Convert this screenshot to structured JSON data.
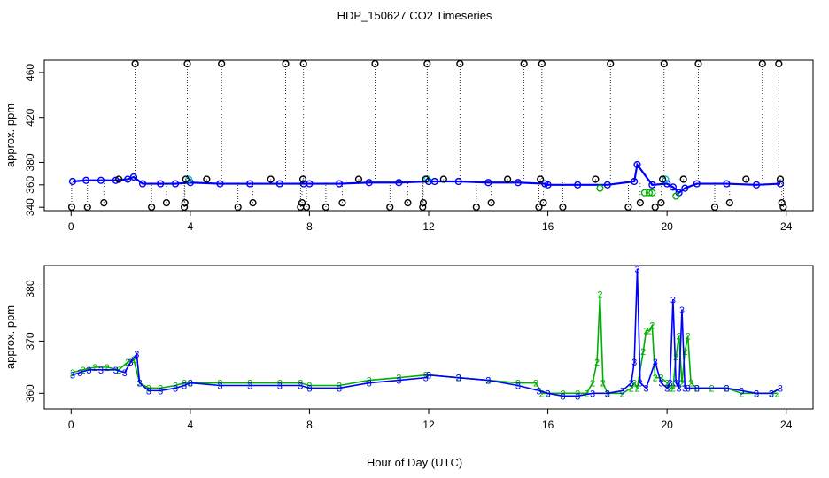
{
  "title": "HDP_150627  CO2 Timeseries",
  "xlabel": "Hour of Day (UTC)",
  "colors": {
    "black": "#000000",
    "blue": "#0000ff",
    "green": "#00b000",
    "cyan": "#00c8c8"
  },
  "chart_data": [
    {
      "type": "scatter",
      "ylabel": "approx. ppm",
      "xlim": [
        -0.9,
        24.9
      ],
      "ylim": [
        337,
        471
      ],
      "xticks": [
        0,
        4,
        8,
        12,
        16,
        20,
        24
      ],
      "yticks": [
        340,
        360,
        380,
        420,
        460
      ],
      "ytick_labels": [
        "340",
        "360",
        "380",
        "420",
        "460"
      ],
      "series": [
        {
          "color": "blue",
          "marker": "circle",
          "points": [
            [
              0.05,
              363
            ],
            [
              0.5,
              364
            ],
            [
              1.0,
              364
            ],
            [
              1.5,
              364
            ],
            [
              1.9,
              365
            ],
            [
              2.1,
              367
            ],
            [
              2.4,
              361
            ],
            [
              3.0,
              361
            ],
            [
              3.5,
              361
            ],
            [
              4.0,
              362
            ],
            [
              5.0,
              361
            ],
            [
              6.0,
              361
            ],
            [
              7.0,
              361
            ],
            [
              7.8,
              361
            ],
            [
              8.0,
              361
            ],
            [
              9.0,
              361
            ],
            [
              10.0,
              362
            ],
            [
              11.0,
              362
            ],
            [
              12.0,
              363
            ],
            [
              12.2,
              363
            ],
            [
              13.0,
              363
            ],
            [
              14.0,
              362
            ],
            [
              15.0,
              362
            ],
            [
              15.9,
              361
            ],
            [
              16.0,
              360
            ],
            [
              17.0,
              360
            ],
            [
              18.0,
              360
            ],
            [
              18.9,
              363
            ],
            [
              19.0,
              378
            ],
            [
              19.5,
              360
            ],
            [
              20.0,
              361
            ],
            [
              20.2,
              358
            ],
            [
              20.4,
              353
            ],
            [
              20.6,
              357
            ],
            [
              21.0,
              361
            ],
            [
              22.0,
              361
            ],
            [
              23.0,
              360
            ],
            [
              23.8,
              361
            ]
          ]
        },
        {
          "color": "green",
          "marker": "circle",
          "points": [
            [
              17.75,
              357
            ],
            [
              19.25,
              353
            ],
            [
              19.4,
              353
            ],
            [
              19.5,
              353
            ],
            [
              20.3,
              350
            ]
          ]
        },
        {
          "color": "cyan",
          "marker": "circle",
          "points": [
            [
              3.95,
              365
            ],
            [
              11.95,
              365
            ],
            [
              19.95,
              365
            ]
          ]
        },
        {
          "color": "black",
          "marker": "circle",
          "drop_lines": true,
          "points": [
            [
              0.02,
              340
            ],
            [
              0.55,
              340
            ],
            [
              1.1,
              344
            ],
            [
              1.6,
              365
            ],
            [
              2.15,
              473
            ],
            [
              2.7,
              340
            ],
            [
              3.2,
              344
            ],
            [
              3.8,
              340
            ],
            [
              3.82,
              344
            ],
            [
              3.85,
              365
            ],
            [
              3.9,
              473
            ],
            [
              4.55,
              365
            ],
            [
              5.05,
              473
            ],
            [
              5.6,
              340
            ],
            [
              6.1,
              344
            ],
            [
              6.7,
              365
            ],
            [
              7.2,
              473
            ],
            [
              7.7,
              340
            ],
            [
              7.75,
              344
            ],
            [
              7.78,
              365
            ],
            [
              7.8,
              473
            ],
            [
              7.9,
              340
            ],
            [
              8.55,
              340
            ],
            [
              9.1,
              344
            ],
            [
              9.65,
              365
            ],
            [
              10.2,
              473
            ],
            [
              10.7,
              340
            ],
            [
              11.3,
              344
            ],
            [
              11.8,
              340
            ],
            [
              11.82,
              344
            ],
            [
              11.9,
              365
            ],
            [
              11.95,
              473
            ],
            [
              12.5,
              365
            ],
            [
              13.05,
              473
            ],
            [
              13.6,
              340
            ],
            [
              14.1,
              344
            ],
            [
              14.65,
              365
            ],
            [
              15.2,
              473
            ],
            [
              15.7,
              340
            ],
            [
              15.75,
              365
            ],
            [
              15.8,
              473
            ],
            [
              15.85,
              344
            ],
            [
              16.5,
              340
            ],
            [
              17.6,
              365
            ],
            [
              18.1,
              473
            ],
            [
              18.7,
              340
            ],
            [
              19.1,
              344
            ],
            [
              19.6,
              340
            ],
            [
              19.8,
              344
            ],
            [
              19.85,
              365
            ],
            [
              19.9,
              473
            ],
            [
              20.55,
              365
            ],
            [
              21.05,
              473
            ],
            [
              21.6,
              340
            ],
            [
              22.1,
              344
            ],
            [
              22.65,
              365
            ],
            [
              23.2,
              473
            ],
            [
              23.75,
              473
            ],
            [
              23.8,
              365
            ],
            [
              23.85,
              344
            ],
            [
              23.9,
              340
            ]
          ]
        }
      ]
    },
    {
      "type": "line",
      "ylabel": "approx. ppm",
      "xlim": [
        -0.9,
        24.9
      ],
      "ylim": [
        357,
        384.5
      ],
      "xticks": [
        0,
        4,
        8,
        12,
        16,
        20,
        24
      ],
      "yticks": [
        360,
        370,
        380
      ],
      "series": [
        {
          "color": "green",
          "marker_text": "2",
          "points": [
            [
              0.05,
              364
            ],
            [
              0.4,
              364.5
            ],
            [
              0.8,
              365
            ],
            [
              1.2,
              365
            ],
            [
              1.6,
              364.5
            ],
            [
              1.9,
              366
            ],
            [
              2.1,
              366.5
            ],
            [
              2.3,
              362
            ],
            [
              2.6,
              361
            ],
            [
              3.0,
              361
            ],
            [
              3.5,
              361.5
            ],
            [
              3.8,
              362
            ],
            [
              4.0,
              362
            ],
            [
              5.0,
              362
            ],
            [
              6.0,
              362
            ],
            [
              7.0,
              362
            ],
            [
              7.7,
              362
            ],
            [
              8.0,
              361.5
            ],
            [
              9.0,
              361.5
            ],
            [
              10.0,
              362.5
            ],
            [
              11.0,
              363
            ],
            [
              11.9,
              363.5
            ],
            [
              12.0,
              363.5
            ],
            [
              13.0,
              363
            ],
            [
              14.0,
              362.5
            ],
            [
              15.0,
              362
            ],
            [
              15.6,
              362
            ],
            [
              15.8,
              360
            ],
            [
              16.0,
              360
            ],
            [
              16.5,
              360
            ],
            [
              17.0,
              360
            ],
            [
              17.3,
              360
            ],
            [
              17.5,
              362
            ],
            [
              17.65,
              366
            ],
            [
              17.75,
              379
            ],
            [
              17.85,
              362
            ],
            [
              18.0,
              360
            ],
            [
              18.5,
              360
            ],
            [
              18.8,
              361
            ],
            [
              18.9,
              362
            ],
            [
              19.0,
              361
            ],
            [
              19.2,
              368
            ],
            [
              19.3,
              372
            ],
            [
              19.4,
              372
            ],
            [
              19.5,
              373
            ],
            [
              19.6,
              363
            ],
            [
              19.8,
              363
            ],
            [
              20.0,
              362
            ],
            [
              20.1,
              361
            ],
            [
              20.2,
              361
            ],
            [
              20.3,
              367
            ],
            [
              20.4,
              371
            ],
            [
              20.5,
              362
            ],
            [
              20.6,
              368
            ],
            [
              20.7,
              371
            ],
            [
              20.8,
              362
            ],
            [
              21.0,
              361
            ],
            [
              21.5,
              361
            ],
            [
              22.0,
              361
            ],
            [
              22.5,
              360
            ],
            [
              23.0,
              360
            ],
            [
              23.5,
              360
            ],
            [
              23.7,
              360
            ]
          ]
        },
        {
          "color": "blue",
          "marker_text": "3",
          "points": [
            [
              0.05,
              363.5
            ],
            [
              0.3,
              364
            ],
            [
              0.6,
              364.5
            ],
            [
              1.0,
              364.5
            ],
            [
              1.5,
              364.5
            ],
            [
              1.8,
              364
            ],
            [
              2.0,
              366
            ],
            [
              2.2,
              367.5
            ],
            [
              2.3,
              362
            ],
            [
              2.6,
              360.5
            ],
            [
              3.0,
              360.5
            ],
            [
              3.5,
              361
            ],
            [
              3.8,
              361.5
            ],
            [
              4.0,
              362
            ],
            [
              5.0,
              361.5
            ],
            [
              6.0,
              361.5
            ],
            [
              7.0,
              361.5
            ],
            [
              7.7,
              361.5
            ],
            [
              8.0,
              361
            ],
            [
              9.0,
              361
            ],
            [
              10.0,
              362
            ],
            [
              11.0,
              362.5
            ],
            [
              11.9,
              363
            ],
            [
              12.0,
              363.5
            ],
            [
              13.0,
              363
            ],
            [
              14.0,
              362.5
            ],
            [
              15.0,
              361.5
            ],
            [
              15.7,
              360.5
            ],
            [
              16.0,
              360
            ],
            [
              16.5,
              359.5
            ],
            [
              17.0,
              359.5
            ],
            [
              17.5,
              360
            ],
            [
              18.0,
              360
            ],
            [
              18.5,
              360.5
            ],
            [
              18.8,
              362
            ],
            [
              18.9,
              366
            ],
            [
              19.0,
              384
            ],
            [
              19.1,
              362
            ],
            [
              19.3,
              361
            ],
            [
              19.6,
              366
            ],
            [
              19.8,
              362
            ],
            [
              20.0,
              361
            ],
            [
              20.1,
              362
            ],
            [
              20.2,
              378
            ],
            [
              20.3,
              362
            ],
            [
              20.4,
              361
            ],
            [
              20.5,
              376
            ],
            [
              20.6,
              361
            ],
            [
              20.7,
              361
            ],
            [
              21.0,
              361
            ],
            [
              22.0,
              361
            ],
            [
              22.5,
              360.5
            ],
            [
              23.0,
              360
            ],
            [
              23.5,
              360
            ],
            [
              23.8,
              361
            ]
          ]
        }
      ]
    }
  ]
}
